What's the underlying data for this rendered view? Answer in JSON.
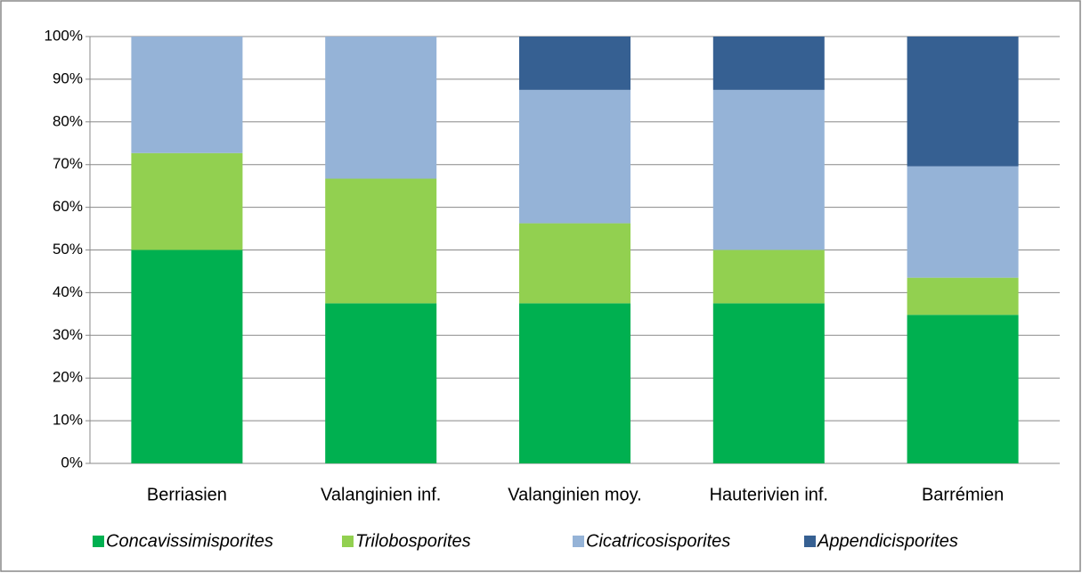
{
  "chart_data": {
    "type": "stacked_bar",
    "categories": [
      "Berriasien",
      "Valanginien inf.",
      "Valanginien moy.",
      "Hauterivien inf.",
      "Barrémien"
    ],
    "series": [
      {
        "name": "Concavissimisporites",
        "color": "#00b050",
        "values": [
          50,
          37.5,
          37.5,
          37.5,
          34.8
        ]
      },
      {
        "name": "Trilobosporites",
        "color": "#92d050",
        "values": [
          22.7,
          29.2,
          18.75,
          12.5,
          8.7
        ]
      },
      {
        "name": "Cicatricosisporites",
        "color": "#95b3d7",
        "values": [
          27.3,
          33.3,
          31.25,
          37.5,
          26.1
        ]
      },
      {
        "name": "Appendicisporites",
        "color": "#366092",
        "values": [
          0,
          0,
          12.5,
          12.5,
          30.4
        ]
      }
    ],
    "ylim": [
      0,
      100
    ],
    "yticks": [
      {
        "value": 0,
        "label": "0%"
      },
      {
        "value": 10,
        "label": "10%"
      },
      {
        "value": 20,
        "label": "20%"
      },
      {
        "value": 30,
        "label": "30%"
      },
      {
        "value": 40,
        "label": "40%"
      },
      {
        "value": 50,
        "label": "50%"
      },
      {
        "value": 60,
        "label": "60%"
      },
      {
        "value": 70,
        "label": "70%"
      },
      {
        "value": 80,
        "label": "80%"
      },
      {
        "value": 90,
        "label": "90%"
      },
      {
        "value": 100,
        "label": "100%"
      }
    ],
    "grid": true,
    "legend": "bottom"
  }
}
